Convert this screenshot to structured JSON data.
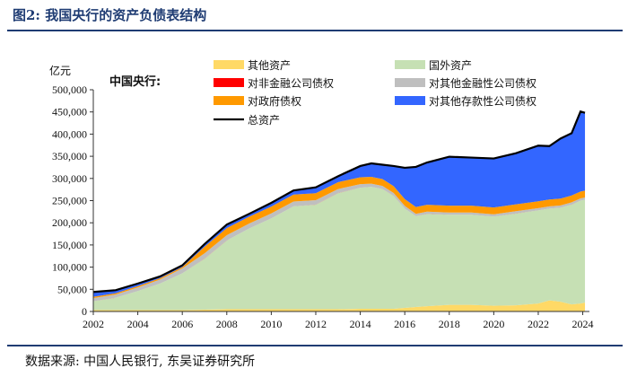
{
  "figure": {
    "title": "图2:  我国央行的资产负债表结构",
    "source": "数据来源:  中国人民银行,  东吴证券研究所"
  },
  "chart_data": {
    "type": "area",
    "title": "",
    "ylabel": "亿元",
    "legend_title": "中国央行:",
    "legend_placement": "top",
    "ylim": [
      0,
      500000
    ],
    "xlim": [
      2002,
      2024.3
    ],
    "x_ticks": [
      2002,
      2004,
      2006,
      2008,
      2010,
      2012,
      2014,
      2016,
      2018,
      2020,
      2022,
      2024
    ],
    "x_tick_labels": [
      "2002",
      "2004",
      "2006",
      "2008",
      "2010",
      "2012",
      "2014",
      "2016",
      "2018",
      "2020",
      "2022",
      "2024"
    ],
    "y_ticks": [
      0,
      50000,
      100000,
      150000,
      200000,
      250000,
      300000,
      350000,
      400000,
      450000,
      500000
    ],
    "y_tick_labels": [
      "0",
      "50,000",
      "100,000",
      "150,000",
      "200,000",
      "250,000",
      "300,000",
      "350,000",
      "400,000",
      "450,000",
      "500,000"
    ],
    "x": [
      2002,
      2003,
      2004,
      2005,
      2006,
      2007,
      2008,
      2009,
      2010,
      2011,
      2012,
      2013,
      2014,
      2014.5,
      2015,
      2015.5,
      2016,
      2016.5,
      2017,
      2018,
      2019,
      2020,
      2021,
      2022,
      2022.5,
      2023,
      2023.5,
      2023.9,
      2024.1
    ],
    "series": [
      {
        "name": "其他资产",
        "color": "#ffd966",
        "values": [
          3000,
          3000,
          3000,
          3000,
          3000,
          4000,
          5000,
          5000,
          5000,
          5000,
          5000,
          5000,
          6000,
          6000,
          6000,
          6000,
          8000,
          10000,
          12000,
          15000,
          15000,
          13000,
          14000,
          18000,
          25000,
          22000,
          16000,
          18000,
          20000
        ]
      },
      {
        "name": "国外资产",
        "color": "#c6e0b4",
        "values": [
          20000,
          28000,
          43000,
          60000,
          83000,
          115000,
          155000,
          182000,
          205000,
          232000,
          236000,
          262000,
          273000,
          275000,
          270000,
          255000,
          224000,
          205000,
          208000,
          203000,
          203000,
          201000,
          207000,
          210000,
          207000,
          212000,
          225000,
          232000,
          232000
        ]
      },
      {
        "name": "对非金融公司债权",
        "color": "#ff0000",
        "values": [
          100,
          100,
          100,
          100,
          100,
          100,
          100,
          100,
          100,
          100,
          100,
          100,
          100,
          100,
          100,
          100,
          100,
          100,
          100,
          100,
          100,
          100,
          100,
          100,
          100,
          100,
          100,
          100,
          100
        ]
      },
      {
        "name": "对其他金融性公司债权",
        "color": "#bfbfbf",
        "values": [
          7000,
          7000,
          8000,
          9000,
          11000,
          12000,
          12000,
          11000,
          11000,
          11000,
          10000,
          9000,
          8000,
          7000,
          7000,
          6000,
          6000,
          5000,
          5000,
          5000,
          5000,
          5000,
          5000,
          5000,
          5000,
          5000,
          5000,
          5000,
          5000
        ]
      },
      {
        "name": "对政府债权",
        "color": "#ff9900",
        "values": [
          3000,
          3000,
          3000,
          3000,
          3000,
          15000,
          16000,
          15500,
          15500,
          15500,
          15500,
          15500,
          15500,
          15500,
          15500,
          15500,
          15500,
          15500,
          15500,
          15500,
          15500,
          15500,
          15500,
          15500,
          15500,
          15500,
          15500,
          15500,
          15500
        ]
      },
      {
        "name": "对其他存款性公司债权",
        "color": "#3366ff",
        "values": [
          11000,
          7000,
          6000,
          4000,
          4000,
          6000,
          8000,
          7000,
          8000,
          9000,
          13000,
          13000,
          25000,
          30000,
          32000,
          45000,
          70000,
          90000,
          95000,
          110000,
          108000,
          110000,
          115000,
          125000,
          120000,
          135000,
          140000,
          180000,
          175000
        ]
      }
    ],
    "total": {
      "name": "总资产",
      "color": "#000000",
      "values": [
        44000,
        48000,
        63000,
        79000,
        104000,
        152000,
        196000,
        220000,
        245000,
        273000,
        280000,
        305000,
        328000,
        334000,
        331000,
        328000,
        324000,
        326000,
        336000,
        349000,
        347000,
        345000,
        357000,
        374000,
        373000,
        390000,
        402000,
        451000,
        448000
      ]
    }
  }
}
